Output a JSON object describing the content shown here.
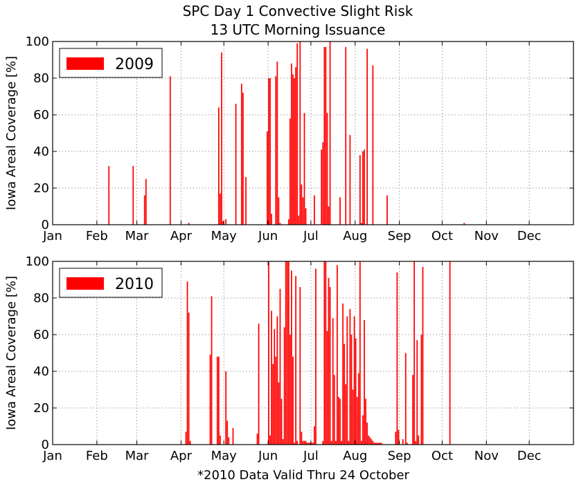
{
  "figure": {
    "title_line1": "SPC Day 1 Convective Slight Risk",
    "title_line2": "13 UTC Morning Issuance",
    "footnote": "*2010 Data Valid Thru 24 October"
  },
  "colors": {
    "bar": "#ff0000",
    "grid": "#9a9a9a",
    "axis": "#000000"
  },
  "chart_data": [
    {
      "type": "bar",
      "legend_label": "2009",
      "legend_position": "top-left",
      "ylabel": "Iowa Areal Coverage [%]",
      "ylim": [
        0,
        100
      ],
      "yticks": [
        0,
        20,
        40,
        60,
        80,
        100
      ],
      "xlim": [
        0,
        365
      ],
      "month_ticks": [
        {
          "label": "Jan",
          "day": 0
        },
        {
          "label": "Feb",
          "day": 31
        },
        {
          "label": "Mar",
          "day": 59
        },
        {
          "label": "Apr",
          "day": 90
        },
        {
          "label": "May",
          "day": 120
        },
        {
          "label": "Jun",
          "day": 151
        },
        {
          "label": "Jul",
          "day": 181
        },
        {
          "label": "Aug",
          "day": 212
        },
        {
          "label": "Sep",
          "day": 243
        },
        {
          "label": "Oct",
          "day": 273
        },
        {
          "label": "Nov",
          "day": 304
        },
        {
          "label": "Dec",
          "day": 334
        }
      ],
      "grid": true,
      "x": [
        39,
        56,
        64,
        65,
        82,
        95,
        116,
        117,
        118,
        119,
        121,
        128,
        132,
        133,
        135,
        150,
        151,
        152,
        153,
        156,
        157,
        158,
        159,
        165,
        166,
        167,
        168,
        169,
        170,
        171,
        172,
        173,
        174,
        175,
        176,
        177,
        183,
        188,
        189,
        190,
        191,
        192,
        193,
        194,
        201,
        205,
        208,
        215,
        216,
        217,
        218,
        220,
        224,
        234,
        288
      ],
      "values": [
        32,
        32,
        16,
        25,
        81,
        1,
        64,
        17,
        94,
        2,
        3,
        66,
        77,
        72,
        26,
        51,
        80,
        80,
        6,
        81,
        89,
        15,
        1,
        3,
        58,
        88,
        82,
        80,
        86,
        99,
        5,
        100,
        22,
        15,
        61,
        9,
        16,
        41,
        45,
        97,
        97,
        61,
        10,
        100,
        15,
        97,
        49,
        38,
        1,
        40,
        41,
        96,
        87,
        16,
        1
      ]
    },
    {
      "type": "bar",
      "legend_label": "2010",
      "legend_position": "top-left",
      "ylabel": "Iowa Areal Coverage [%]",
      "ylim": [
        0,
        100
      ],
      "yticks": [
        0,
        20,
        40,
        60,
        80,
        100
      ],
      "xlim": [
        0,
        365
      ],
      "month_ticks": [
        {
          "label": "Jan",
          "day": 0
        },
        {
          "label": "Feb",
          "day": 31
        },
        {
          "label": "Mar",
          "day": 59
        },
        {
          "label": "Apr",
          "day": 90
        },
        {
          "label": "May",
          "day": 120
        },
        {
          "label": "Jun",
          "day": 151
        },
        {
          "label": "Jul",
          "day": 181
        },
        {
          "label": "Aug",
          "day": 212
        },
        {
          "label": "Sep",
          "day": 243
        },
        {
          "label": "Oct",
          "day": 273
        },
        {
          "label": "Nov",
          "day": 304
        },
        {
          "label": "Dec",
          "day": 334
        }
      ],
      "grid": true,
      "x": [
        93,
        94,
        95,
        96,
        110,
        111,
        115,
        116,
        117,
        121,
        122,
        123,
        126,
        143,
        144,
        151,
        152,
        153,
        154,
        155,
        156,
        157,
        158,
        159,
        160,
        161,
        162,
        163,
        164,
        165,
        166,
        167,
        168,
        169,
        170,
        171,
        172,
        173,
        174,
        175,
        176,
        177,
        178,
        179,
        180,
        181,
        182,
        183,
        184,
        189,
        190,
        191,
        192,
        193,
        194,
        195,
        196,
        197,
        198,
        199,
        200,
        201,
        202,
        203,
        204,
        205,
        206,
        207,
        208,
        209,
        210,
        211,
        212,
        213,
        214,
        215,
        216,
        217,
        218,
        219,
        220,
        221,
        222,
        223,
        224,
        225,
        226,
        227,
        228,
        229,
        230,
        240,
        241,
        242,
        245,
        247,
        248,
        252,
        253,
        254,
        255,
        256,
        258,
        259,
        278
      ],
      "values": [
        7,
        89,
        72,
        2,
        49,
        81,
        48,
        48,
        5,
        40,
        13,
        4,
        9,
        6,
        66,
        100,
        5,
        73,
        44,
        63,
        48,
        70,
        34,
        85,
        25,
        3,
        64,
        100,
        100,
        100,
        60,
        95,
        48,
        1,
        92,
        2,
        0,
        86,
        7,
        2,
        2,
        2,
        1,
        1,
        1,
        1,
        1,
        10,
        96,
        2,
        100,
        100,
        62,
        91,
        86,
        2,
        69,
        38,
        2,
        98,
        26,
        25,
        2,
        77,
        55,
        33,
        70,
        2,
        74,
        60,
        30,
        70,
        58,
        26,
        39,
        100,
        2,
        16,
        68,
        25,
        12,
        5,
        4,
        3,
        2,
        1,
        1,
        1,
        1,
        1,
        1,
        7,
        94,
        8,
        3,
        50,
        1,
        38,
        100,
        2,
        57,
        5,
        60,
        97,
        100
      ]
    }
  ]
}
